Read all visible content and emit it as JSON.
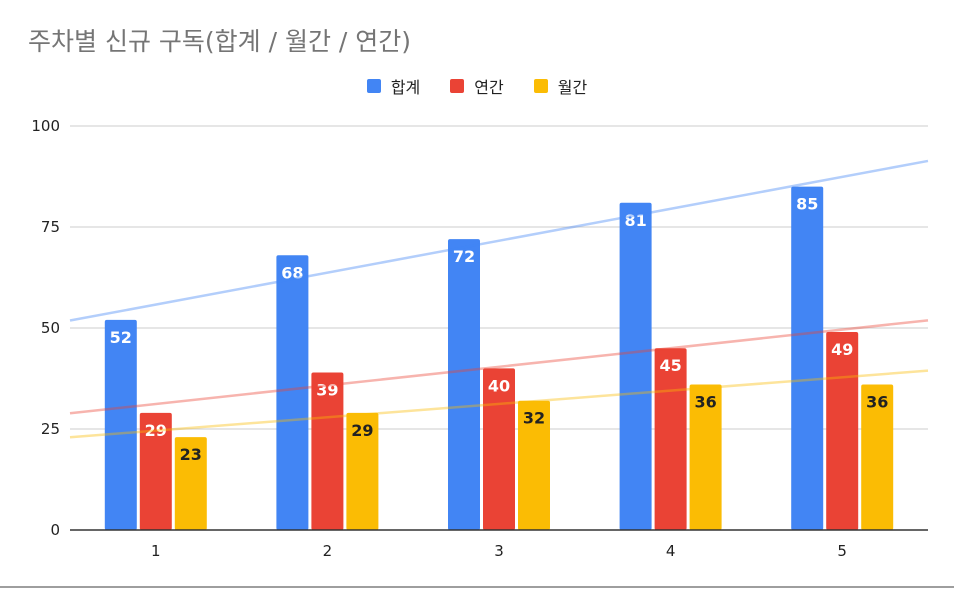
{
  "title": "주차별 신규 구독(합계 / 월간 / 연간)",
  "colors": {
    "total": "#4285f4",
    "annual": "#ea4335",
    "monthly": "#fbbc04",
    "grid": "#cccccc",
    "axis": "#333333"
  },
  "chart_data": {
    "type": "bar",
    "title": "주차별 신규 구독(합계 / 월간 / 연간)",
    "categories": [
      "1",
      "2",
      "3",
      "4",
      "5"
    ],
    "series": [
      {
        "name": "합계",
        "values": [
          52,
          68,
          72,
          81,
          85
        ],
        "color": "#4285f4",
        "label_color": "#ffffff"
      },
      {
        "name": "연간",
        "values": [
          29,
          39,
          40,
          45,
          49
        ],
        "color": "#ea4335",
        "label_color": "#ffffff"
      },
      {
        "name": "월간",
        "values": [
          23,
          29,
          32,
          36,
          36
        ],
        "color": "#fbbc04",
        "label_color": "#222222"
      }
    ],
    "trendlines": [
      {
        "series": "합계",
        "type": "linear",
        "color": "#4285f4"
      },
      {
        "series": "연간",
        "type": "linear",
        "color": "#ea4335"
      },
      {
        "series": "월간",
        "type": "linear",
        "color": "#fbbc04"
      }
    ],
    "ylim": [
      0,
      100
    ],
    "yticks": [
      "0",
      "25",
      "50",
      "75",
      "100"
    ],
    "ytick_values": [
      0,
      25,
      50,
      75,
      100
    ],
    "xlabel": "",
    "ylabel": "",
    "legend": "top-center",
    "grid": true
  }
}
